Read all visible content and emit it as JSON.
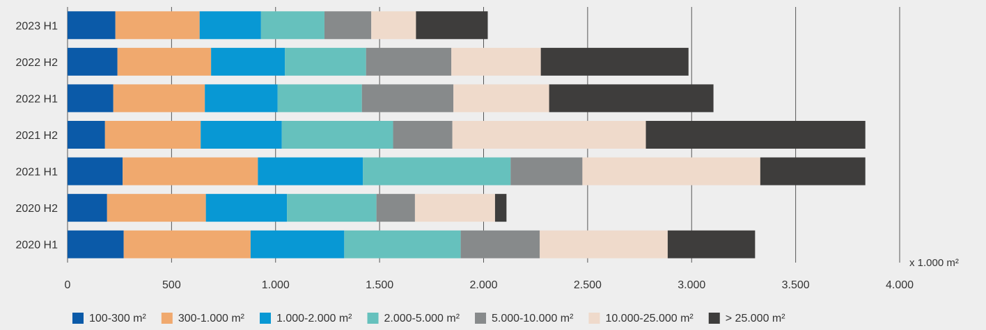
{
  "chart_data": {
    "type": "bar",
    "orientation": "horizontal",
    "stacked": true,
    "categories": [
      "2020 H1",
      "2020 H2",
      "2021 H1",
      "2021 H2",
      "2022 H1",
      "2022 H2",
      "2023 H1"
    ],
    "series": [
      {
        "name": "100-300 m²",
        "color": "#0b5aa8",
        "values": [
          270,
          190,
          265,
          180,
          220,
          240,
          230
        ]
      },
      {
        "name": "300-1.000 m²",
        "color": "#f0a96e",
        "values": [
          610,
          475,
          650,
          460,
          440,
          450,
          405
        ]
      },
      {
        "name": "1.000-2.000 m²",
        "color": "#0898d4",
        "values": [
          450,
          390,
          505,
          390,
          350,
          355,
          295
        ]
      },
      {
        "name": "2.000-5.000 m²",
        "color": "#66c1bd",
        "values": [
          560,
          430,
          710,
          535,
          405,
          390,
          305
        ]
      },
      {
        "name": "5.000-10.000 m²",
        "color": "#878a8b",
        "values": [
          380,
          185,
          345,
          285,
          440,
          410,
          225
        ]
      },
      {
        "name": "10.000-25.000 m²",
        "color": "#efdacb",
        "values": [
          615,
          385,
          855,
          930,
          460,
          430,
          215
        ]
      },
      {
        "name": "> 25.000 m²",
        "color": "#3e3d3c",
        "values": [
          420,
          55,
          505,
          1055,
          790,
          710,
          345
        ]
      }
    ],
    "xticks": [
      "0",
      "500",
      "1.000",
      "1.500",
      "2.000",
      "2.500",
      "3.000",
      "3.500",
      "4.000"
    ],
    "xlim": [
      0,
      4000
    ],
    "unit_label": "x 1.000 m²",
    "grid": true,
    "legend_position": "bottom"
  }
}
